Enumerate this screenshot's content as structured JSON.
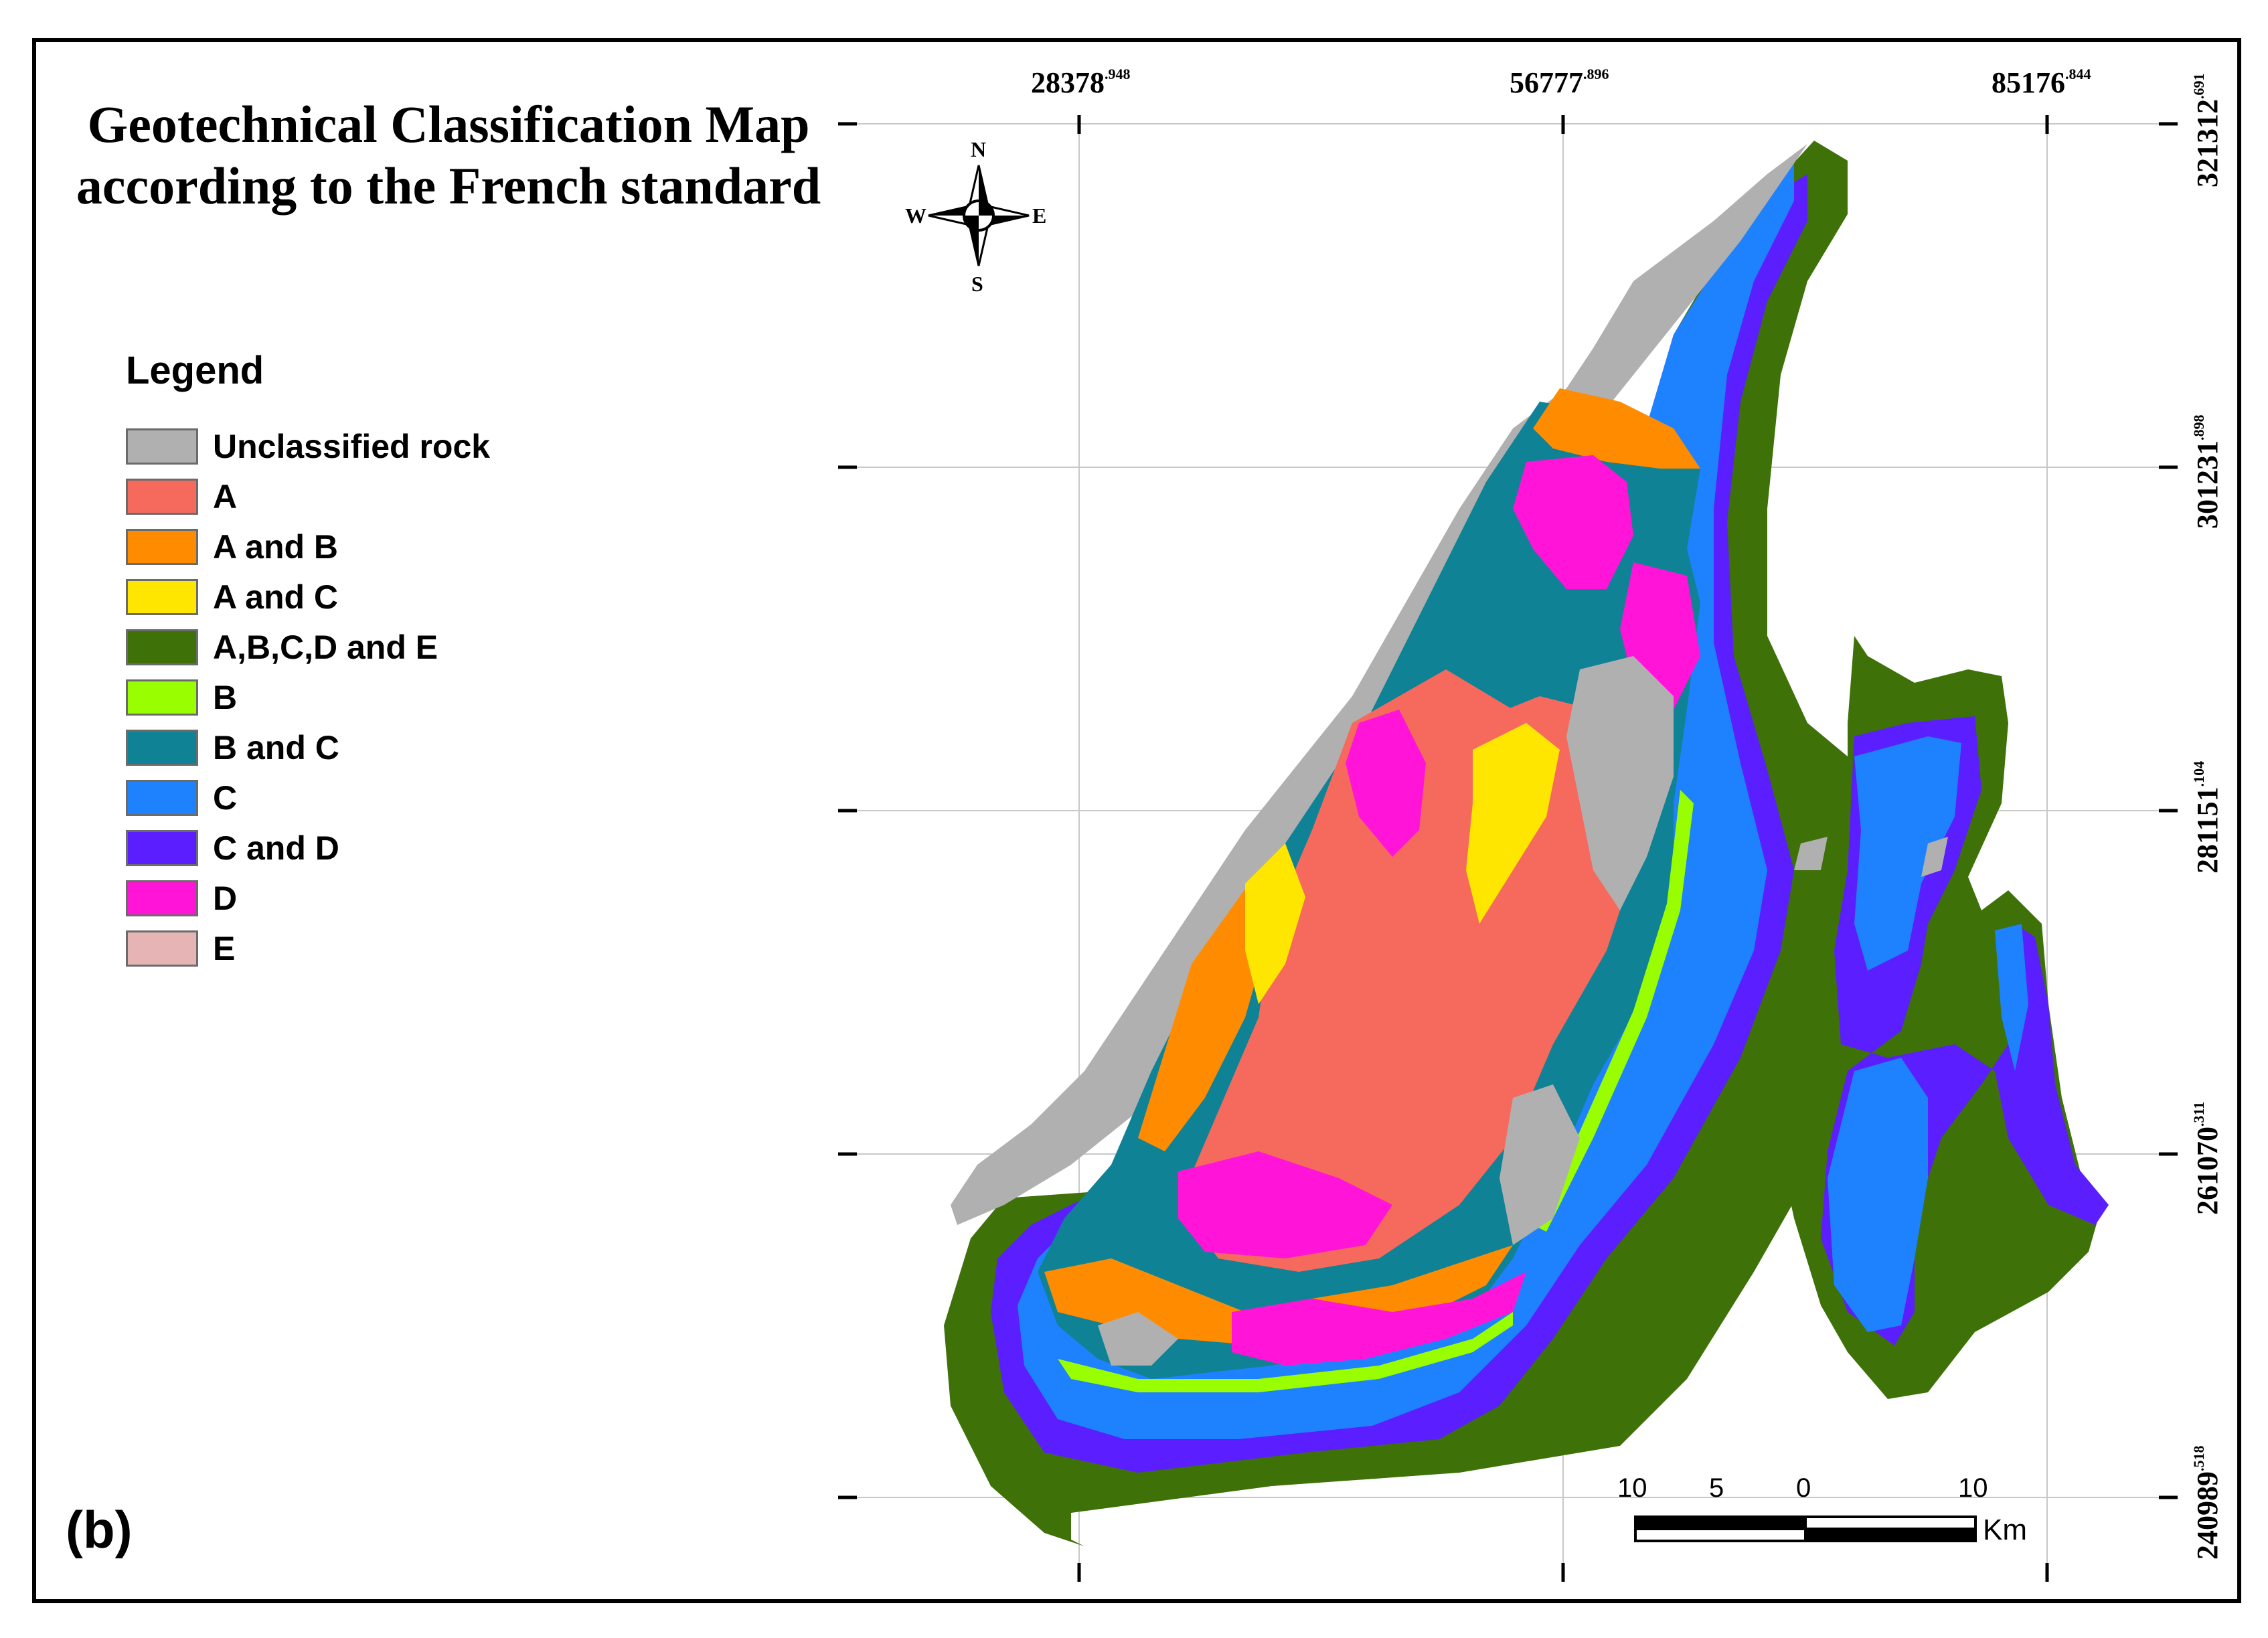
{
  "title": {
    "line1": "Geotechnical Classification Map",
    "line2": "according to the French standard"
  },
  "panel_label": "(b)",
  "legend": {
    "title": "Legend",
    "items": [
      {
        "label": "Unclassified rock",
        "color": "#b0b0b0"
      },
      {
        "label": "A",
        "color": "#f66a5e"
      },
      {
        "label": "A and B",
        "color": "#ff8c00"
      },
      {
        "label": "A and C",
        "color": "#ffe600"
      },
      {
        "label": "A,B,C,D and E",
        "color": "#3e7108"
      },
      {
        "label": "B",
        "color": "#99ff00"
      },
      {
        "label": "B and C",
        "color": "#0f8296"
      },
      {
        "label": "C",
        "color": "#1e82ff"
      },
      {
        "label": "C and D",
        "color": "#5a1eff"
      },
      {
        "label": "D",
        "color": "#ff14d8"
      },
      {
        "label": "E",
        "color": "#e6b4b4"
      }
    ]
  },
  "grid": {
    "x_labels": [
      {
        "main": "28378",
        "sup": ".948"
      },
      {
        "main": "56777",
        "sup": ".896"
      },
      {
        "main": "85176",
        "sup": ".844"
      }
    ],
    "y_labels": [
      {
        "main": "321312",
        "sup": ".691"
      },
      {
        "main": "301231",
        "sup": ".898"
      },
      {
        "main": "281151",
        "sup": ".104"
      },
      {
        "main": "261070",
        "sup": ".311"
      },
      {
        "main": "240989",
        "sup": ".518"
      }
    ]
  },
  "north_arrow": {
    "n": "N",
    "s": "S",
    "e": "E",
    "w": "W"
  },
  "scale_bar": {
    "labels": [
      "10",
      "5",
      "0",
      "10"
    ],
    "unit": "Km"
  }
}
